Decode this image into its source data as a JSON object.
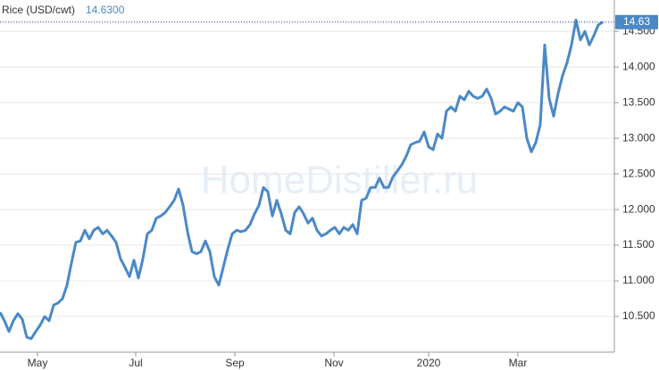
{
  "chart_data": {
    "type": "line",
    "title": "Rice (USD/cwt)",
    "subtitle": "14.6300",
    "last_value_label": "14.63",
    "watermark": "HomeDistiller.ru",
    "color": "#4a89c8",
    "grid": true,
    "values": [
      10.56,
      10.44,
      10.29,
      10.44,
      10.54,
      10.46,
      10.21,
      10.19,
      10.29,
      10.38,
      10.5,
      10.44,
      10.66,
      10.69,
      10.75,
      10.94,
      11.25,
      11.54,
      11.56,
      11.71,
      11.59,
      11.71,
      11.75,
      11.66,
      11.71,
      11.63,
      11.54,
      11.31,
      11.19,
      11.06,
      11.29,
      11.04,
      11.31,
      11.66,
      11.71,
      11.88,
      11.91,
      11.96,
      12.04,
      12.13,
      12.29,
      12.06,
      11.69,
      11.41,
      11.38,
      11.41,
      11.56,
      11.41,
      11.06,
      10.94,
      11.19,
      11.44,
      11.66,
      11.71,
      11.69,
      11.71,
      11.79,
      11.94,
      12.06,
      12.31,
      12.25,
      11.91,
      12.13,
      11.94,
      11.71,
      11.66,
      11.96,
      12.04,
      11.94,
      11.81,
      11.88,
      11.71,
      11.63,
      11.66,
      11.71,
      11.75,
      11.66,
      11.75,
      11.71,
      11.79,
      11.66,
      12.13,
      12.16,
      12.31,
      12.31,
      12.44,
      12.31,
      12.31,
      12.46,
      12.54,
      12.63,
      12.75,
      12.91,
      12.94,
      12.96,
      13.09,
      12.88,
      12.84,
      13.06,
      13.0,
      13.38,
      13.44,
      13.38,
      13.59,
      13.54,
      13.66,
      13.59,
      13.56,
      13.59,
      13.69,
      13.56,
      13.34,
      13.38,
      13.44,
      13.41,
      13.38,
      13.5,
      13.44,
      13.0,
      12.81,
      12.94,
      13.19,
      14.31,
      13.56,
      13.31,
      13.63,
      13.88,
      14.06,
      14.31,
      14.66,
      14.38,
      14.5,
      14.31,
      14.44,
      14.59,
      14.63
    ],
    "xlim": [
      0,
      137.6
    ],
    "xticks": [
      {
        "value": 8.4,
        "label": "May"
      },
      {
        "value": 30.4,
        "label": "Jul"
      },
      {
        "value": 52.6,
        "label": "Sep"
      },
      {
        "value": 74.8,
        "label": "Nov"
      },
      {
        "value": 96,
        "label": "2020"
      },
      {
        "value": 116,
        "label": "Mar"
      }
    ],
    "ylim": [
      10,
      14.94
    ],
    "yticks": [
      {
        "value": 10.5,
        "label": "10.500"
      },
      {
        "value": 11,
        "label": "11.000"
      },
      {
        "value": 11.5,
        "label": "11.500"
      },
      {
        "value": 12,
        "label": "12.000"
      },
      {
        "value": 12.5,
        "label": "12.500"
      },
      {
        "value": 13,
        "label": "13.000"
      },
      {
        "value": 13.5,
        "label": "13.500"
      },
      {
        "value": 14,
        "label": "14.000"
      },
      {
        "value": 14.5,
        "label": "14.500"
      }
    ]
  }
}
